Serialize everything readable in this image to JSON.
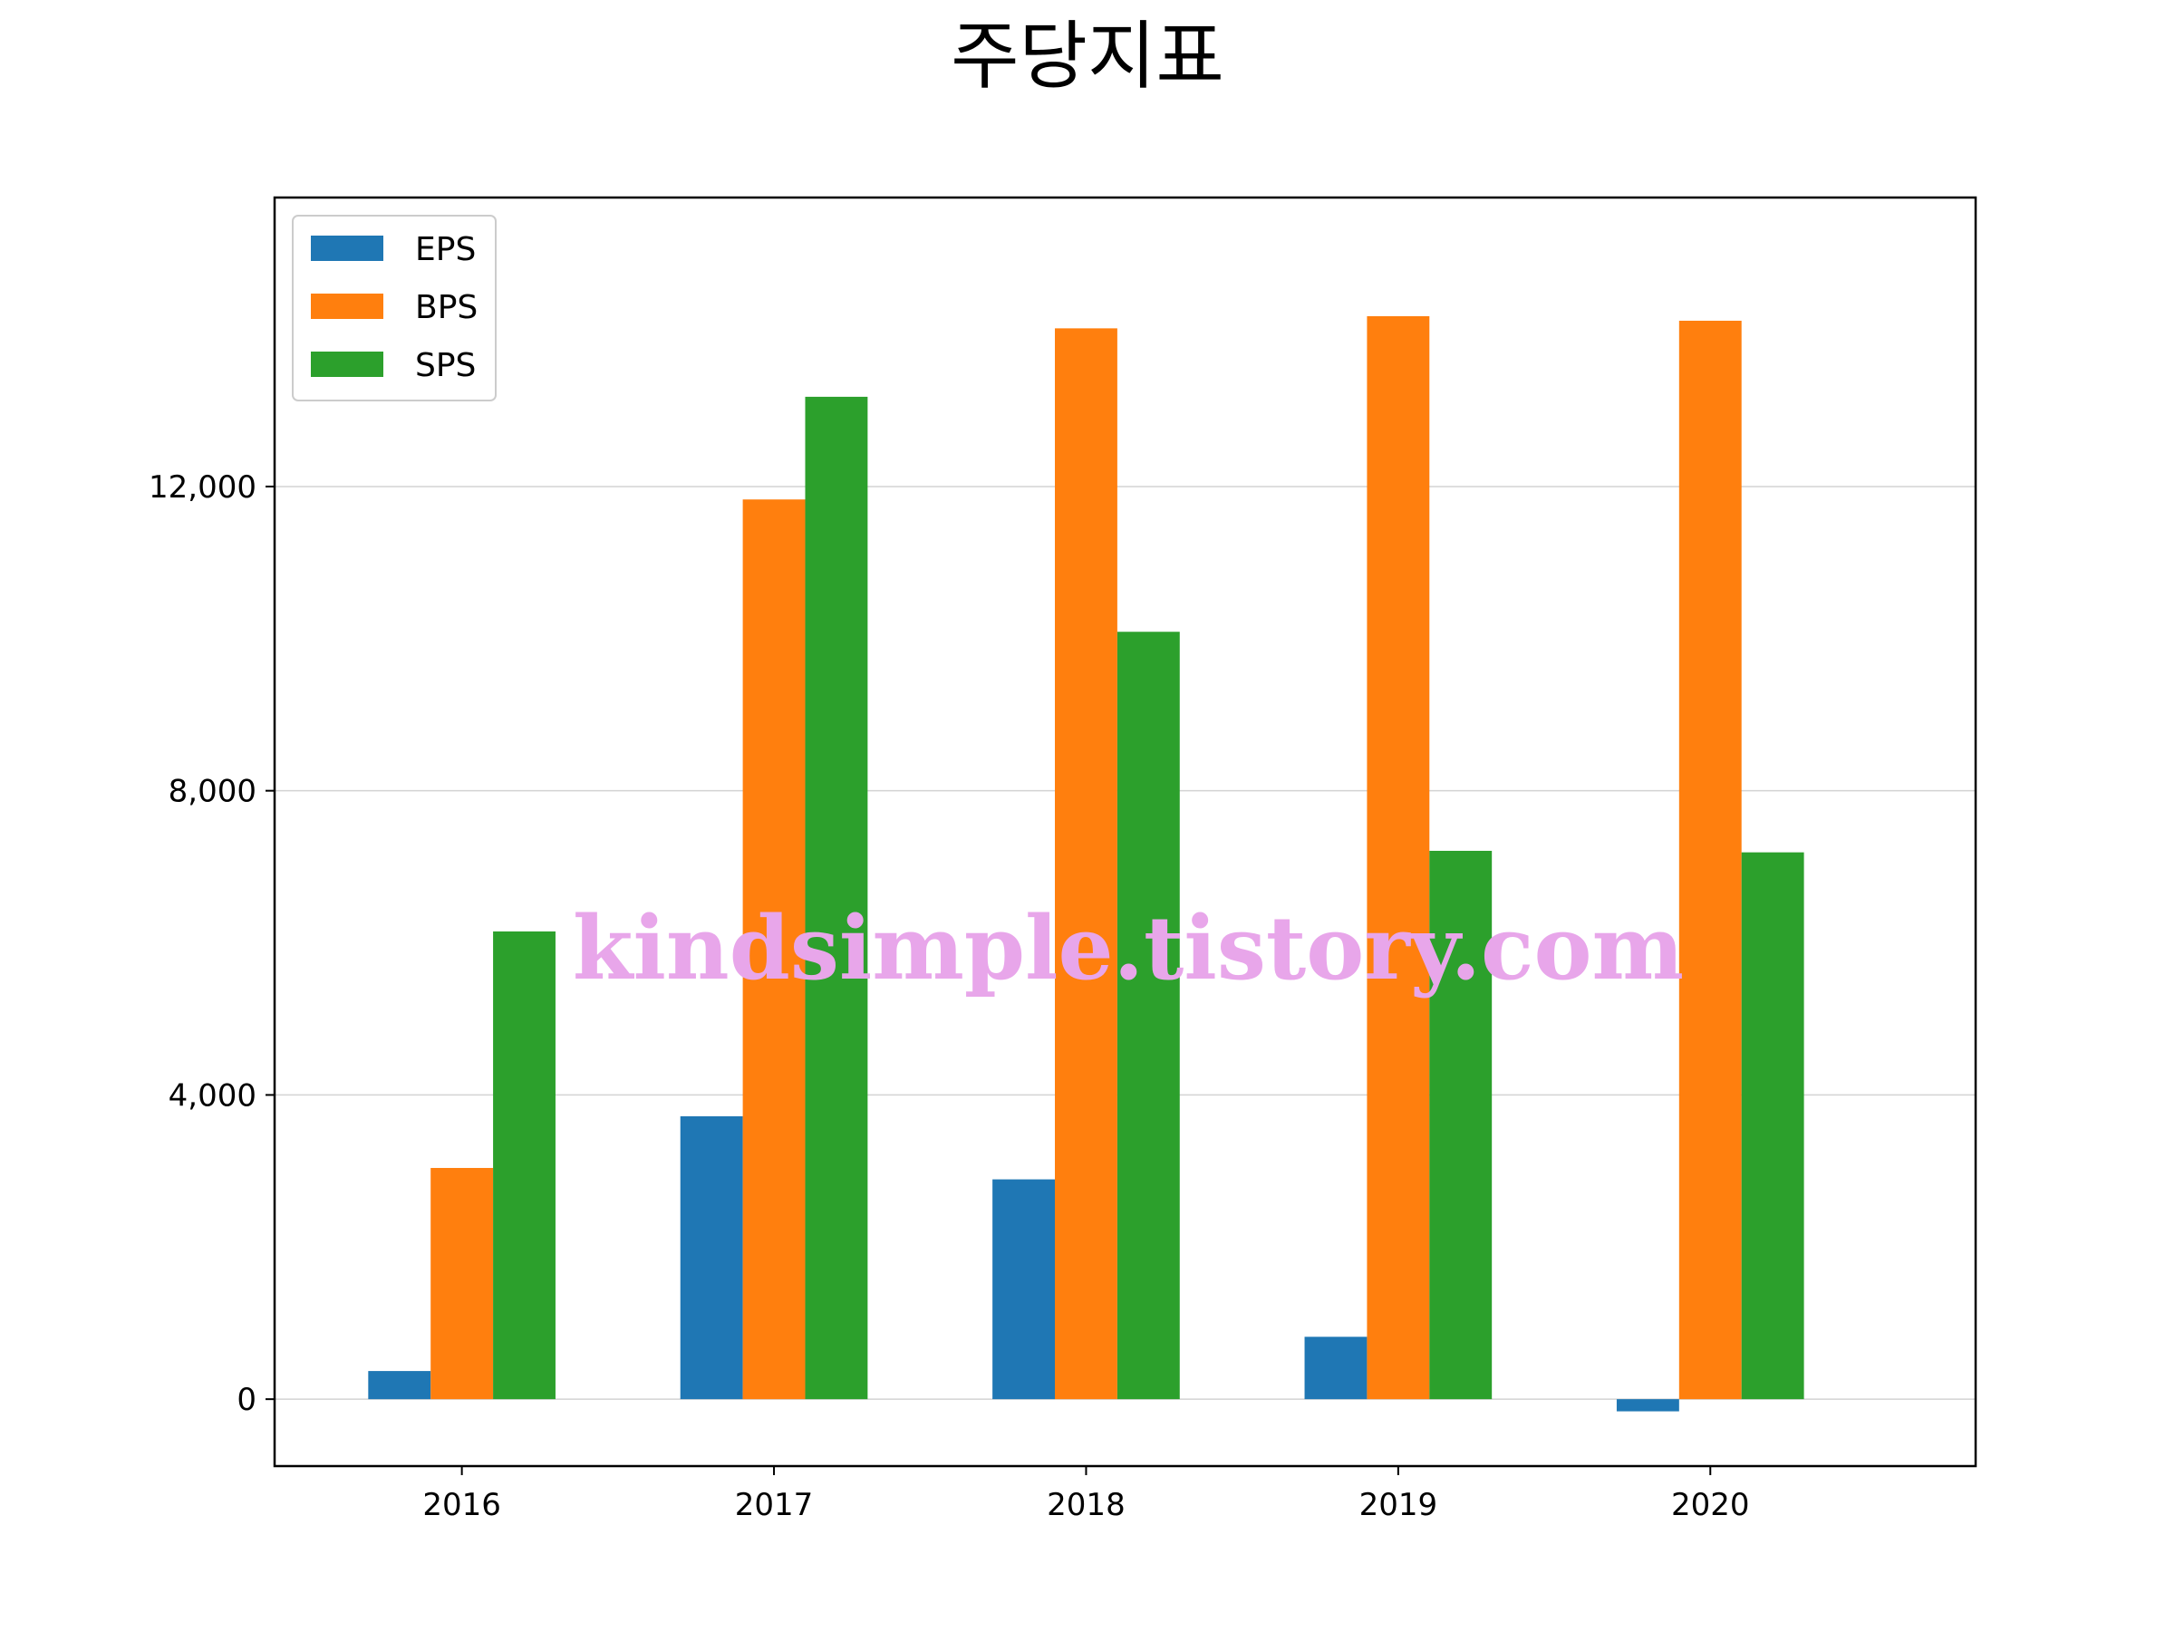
{
  "chart_data": {
    "type": "bar",
    "title": "주당지표",
    "xlabel": "",
    "ylabel": "",
    "categories": [
      "2016",
      "2017",
      "2018",
      "2019",
      "2020"
    ],
    "series": [
      {
        "name": "EPS",
        "color": "#1f77b4",
        "values": [
          370,
          3720,
          2890,
          820,
          -160
        ]
      },
      {
        "name": "BPS",
        "color": "#ff7f0e",
        "values": [
          3040,
          11830,
          14080,
          14240,
          14180
        ]
      },
      {
        "name": "SPS",
        "color": "#2ca02c",
        "values": [
          6150,
          13180,
          10090,
          7210,
          7190
        ]
      }
    ],
    "ylim": [
      -880,
      15800
    ],
    "yticks": [
      0,
      4000,
      8000,
      12000
    ],
    "ytick_labels": [
      "0",
      "4,000",
      "8,000",
      "12,000"
    ],
    "grid": "y",
    "legend_position": "top-left"
  },
  "watermark": "kindsimple.tistory.com"
}
